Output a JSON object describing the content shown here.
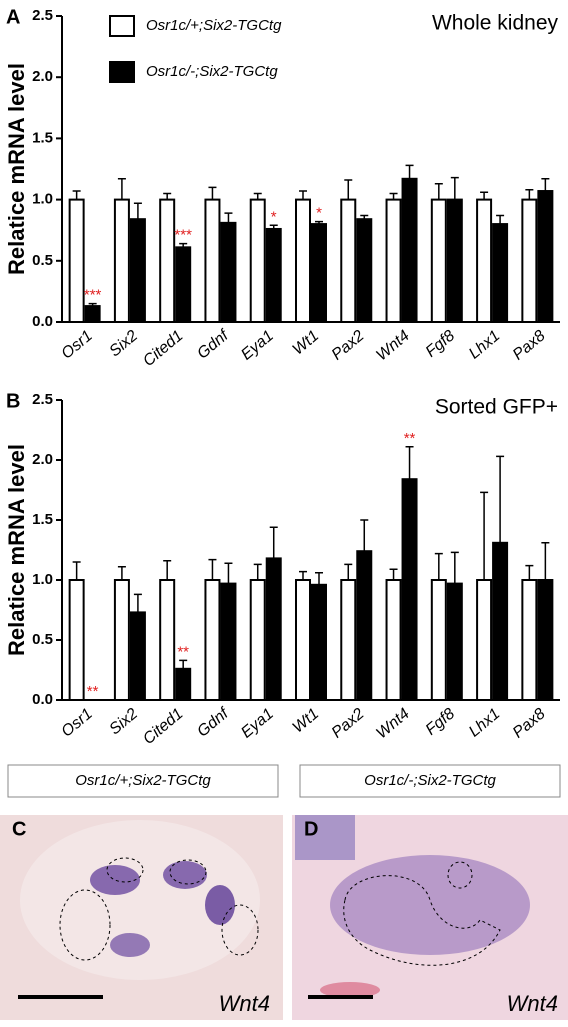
{
  "chart_data": [
    {
      "type": "bar",
      "panel_label": "A",
      "title": "Whole kidney",
      "y_label": "Relatice mRNA level",
      "categories": [
        "Osr1",
        "Six2",
        "Cited1",
        "Gdnf",
        "Eya1",
        "Wt1",
        "Pax2",
        "Wnt4",
        "Fgf8",
        "Lhx1",
        "Pax8"
      ],
      "series": [
        {
          "name": "Osr1c/+;Six2-TGCtg",
          "color": "#ffffff",
          "values": [
            1.0,
            1.0,
            1.0,
            1.0,
            1.0,
            1.0,
            1.0,
            1.0,
            1.0,
            1.0,
            1.0
          ],
          "errors": [
            0.07,
            0.17,
            0.05,
            0.1,
            0.05,
            0.07,
            0.16,
            0.05,
            0.13,
            0.06,
            0.08
          ]
        },
        {
          "name": "Osr1c/-;Six2-TGCtg",
          "color": "#000000",
          "values": [
            0.13,
            0.84,
            0.61,
            0.81,
            0.76,
            0.8,
            0.84,
            1.17,
            1.0,
            0.8,
            1.07
          ],
          "errors": [
            0.02,
            0.13,
            0.03,
            0.08,
            0.03,
            0.02,
            0.03,
            0.11,
            0.18,
            0.07,
            0.1
          ]
        }
      ],
      "significance": [
        "***",
        null,
        "***",
        null,
        "*",
        "*",
        null,
        null,
        null,
        null,
        null
      ],
      "ylim": [
        0,
        2.5
      ],
      "yticks": [
        {
          "value": 0,
          "label": "0.0"
        },
        0.5,
        {
          "value": 1,
          "label": "1.0"
        },
        1.5,
        {
          "value": 2,
          "label": "2.0"
        },
        2.5
      ],
      "legend": "upper left"
    },
    {
      "type": "bar",
      "panel_label": "B",
      "title": "Sorted GFP+",
      "y_label": "Relatice mRNA level",
      "categories": [
        "Osr1",
        "Six2",
        "Cited1",
        "Gdnf",
        "Eya1",
        "Wt1",
        "Pax2",
        "Wnt4",
        "Fgf8",
        "Lhx1",
        "Pax8"
      ],
      "series": [
        {
          "color": "#ffffff",
          "values": [
            1.0,
            1.0,
            1.0,
            1.0,
            1.0,
            1.0,
            1.0,
            1.0,
            1.0,
            1.0,
            1.0
          ],
          "errors": [
            0.15,
            0.11,
            0.16,
            0.17,
            0.13,
            0.07,
            0.13,
            0.09,
            0.22,
            0.73,
            0.12
          ]
        },
        {
          "color": "#000000",
          "values": [
            0,
            0.73,
            0.26,
            0.97,
            1.18,
            0.96,
            1.24,
            1.84,
            0.97,
            1.31,
            1.0
          ],
          "errors": [
            0,
            0.15,
            0.07,
            0.17,
            0.26,
            0.1,
            0.26,
            0.27,
            0.26,
            0.72,
            0.31
          ]
        }
      ],
      "significance": [
        "**",
        null,
        "**",
        null,
        null,
        null,
        null,
        "**",
        null,
        null,
        null
      ],
      "ylim": [
        0,
        2.5
      ],
      "yticks": [
        {
          "value": 0,
          "label": "0.0"
        },
        0.5,
        {
          "value": 1,
          "label": "1.0"
        },
        1.5,
        {
          "value": 2,
          "label": "2.0"
        },
        2.5
      ]
    }
  ],
  "image_panels": [
    {
      "genotype": "Osr1c/+;Six2-TGCtg",
      "label": "C",
      "gene": "Wnt4"
    },
    {
      "genotype": "Osr1c/-;Six2-TGCtg",
      "label": "D",
      "gene": "Wnt4"
    }
  ]
}
